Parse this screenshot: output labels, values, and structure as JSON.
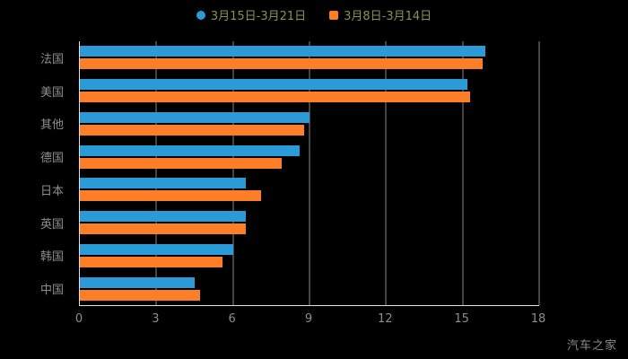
{
  "watermark": "汽车之家",
  "colors": {
    "background": "#000000",
    "axis_text": "#8e8e8e",
    "axis_line": "#e0e0e0",
    "gridline": "#b5b5b5",
    "legend_text": "#8f8f52",
    "watermark_text": "#8a8a8a"
  },
  "chart_data": {
    "type": "bar",
    "orientation": "horizontal",
    "title": "",
    "xlabel": "",
    "ylabel": "",
    "categories": [
      "法国",
      "美国",
      "其他",
      "德国",
      "日本",
      "英国",
      "韩国",
      "中国"
    ],
    "series": [
      {
        "name": "3月15日-3月21日",
        "color": "#2b9bd7",
        "values": [
          15.9,
          15.2,
          9.0,
          8.6,
          6.5,
          6.5,
          6.0,
          4.5
        ]
      },
      {
        "name": "3月8日-3月14日",
        "color": "#fd7e26",
        "values": [
          15.8,
          15.3,
          8.8,
          7.9,
          7.1,
          6.5,
          5.6,
          4.7
        ]
      }
    ],
    "xlim": [
      0,
      18
    ],
    "xticks": [
      0,
      3,
      6,
      9,
      12,
      15,
      18
    ],
    "legend_position": "top",
    "grid": true
  }
}
